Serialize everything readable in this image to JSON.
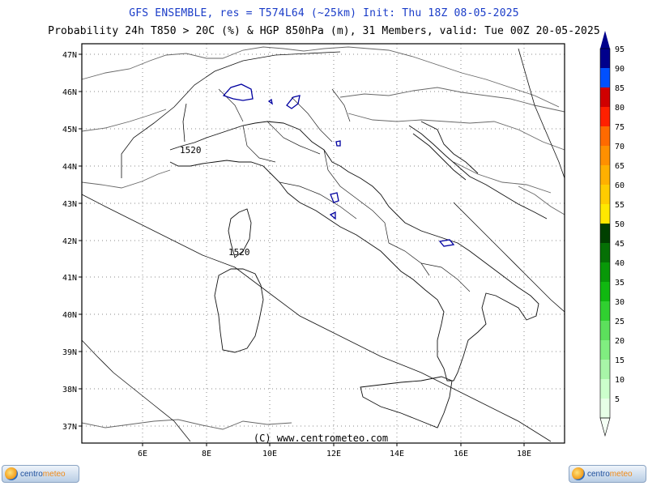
{
  "header": {
    "title": "GFS ENSEMBLE, res = T574L64 (~25km)   Init: Thu 18Z 08-05-2025",
    "subtitle": "Probability 24h T850 > 20C (%) & HGP 850hPa (m), 31 Members, valid: Tue 00Z 20-05-2025"
  },
  "map": {
    "lat_labels": [
      "47N",
      "46N",
      "45N",
      "44N",
      "43N",
      "42N",
      "41N",
      "40N",
      "39N",
      "38N",
      "37N"
    ],
    "lon_labels": [
      "6E",
      "8E",
      "10E",
      "12E",
      "14E",
      "16E",
      "18E"
    ],
    "contour_labels": [
      "1520",
      "1520"
    ],
    "copyright": "(C) www.centrometeo.com",
    "colors": {
      "border": "#555555",
      "coast": "#111111",
      "prob": "#0000a0",
      "grid": "#888888"
    }
  },
  "legend": {
    "levels": [
      "5",
      "10",
      "15",
      "20",
      "25",
      "30",
      "35",
      "40",
      "45",
      "50",
      "55",
      "60",
      "65",
      "70",
      "75",
      "80",
      "85",
      "90",
      "95"
    ],
    "colors": [
      "#e6ffe6",
      "#ccffcc",
      "#a8f5a8",
      "#80ee80",
      "#5ce05c",
      "#30d030",
      "#10b810",
      "#089808",
      "#057005",
      "#004000",
      "#ffe800",
      "#ffcc00",
      "#ffb000",
      "#ff9000",
      "#ff6a00",
      "#ff2000",
      "#d00000",
      "#0050ff",
      "#00008c"
    ]
  },
  "footer": {
    "logo_left": {
      "part1": "centro",
      "part2": "meteo"
    },
    "logo_right": {
      "part1": "centro",
      "part2": "meteo"
    }
  }
}
